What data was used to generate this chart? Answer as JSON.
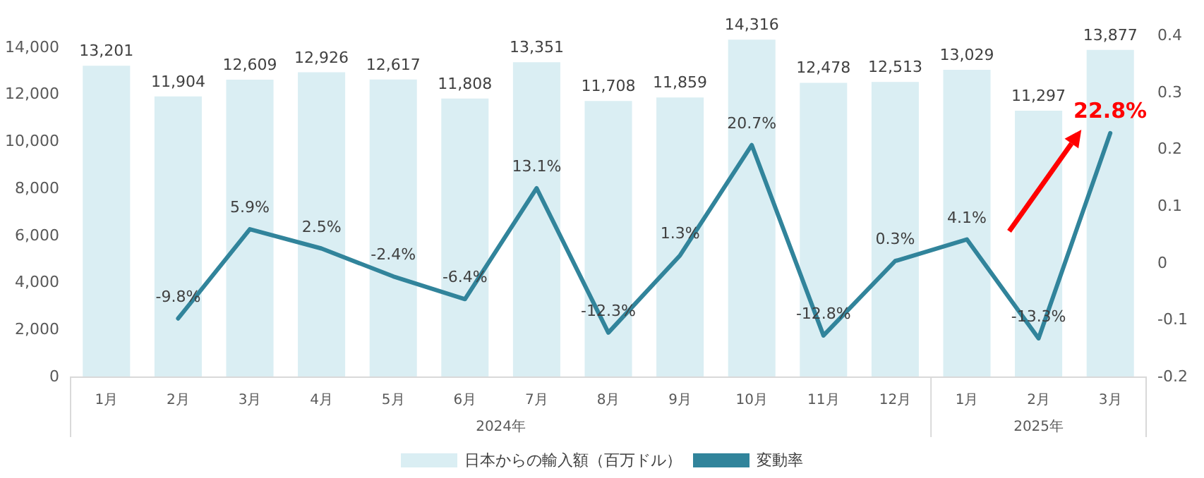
{
  "chart_data": {
    "type": "bar",
    "categories": [
      "1月",
      "2月",
      "3月",
      "4月",
      "5月",
      "6月",
      "7月",
      "8月",
      "9月",
      "10月",
      "11月",
      "12月",
      "1月",
      "2月",
      "3月"
    ],
    "series": [
      {
        "name": "日本からの輸入額（百万ドル）",
        "color": "#daeef3",
        "values": [
          13201,
          11904,
          12609,
          12926,
          12617,
          11808,
          13351,
          11708,
          11859,
          14316,
          12478,
          12513,
          13029,
          11297,
          13877
        ],
        "value_labels": [
          "13,201",
          "11,904",
          "12,609",
          "12,926",
          "12,617",
          "11,808",
          "13,351",
          "11,708",
          "11,859",
          "14,316",
          "12,478",
          "12,513",
          "13,029",
          "11,297",
          "13,877"
        ]
      },
      {
        "name": "変動率",
        "type": "line",
        "axis": "y2",
        "color": "#31849b",
        "values": [
          null,
          -0.098,
          0.059,
          0.025,
          -0.024,
          -0.064,
          0.131,
          -0.123,
          0.013,
          0.207,
          -0.128,
          0.003,
          0.041,
          -0.133,
          0.228
        ],
        "value_labels": [
          null,
          "-9.8%",
          "5.9%",
          "2.5%",
          "-2.4%",
          "-6.4%",
          "13.1%",
          "-12.3%",
          "1.3%",
          "20.7%",
          "-12.8%",
          "0.3%",
          "4.1%",
          "-13.3%",
          "22.8%"
        ]
      }
    ],
    "ylim": [
      0,
      14500
    ],
    "yticks": [
      0,
      {
        "value": 2000,
        "label": "2,000"
      },
      {
        "value": 4000,
        "label": "4,000"
      },
      {
        "value": 6000,
        "label": "6,000"
      },
      {
        "value": 8000,
        "label": "8,000"
      },
      {
        "value": 10000,
        "label": "10,000"
      },
      {
        "value": 12000,
        "label": "12,000"
      },
      {
        "value": 14000,
        "label": "14,000"
      }
    ],
    "y2lim": [
      -0.2,
      0.4
    ],
    "y2ticks": [
      -0.2,
      -0.1,
      0,
      0.1,
      0.2,
      0.3,
      0.4
    ],
    "annotations": [
      "2024年",
      "2025年"
    ],
    "legend": "bottom",
    "marker": "none",
    "line_style": "solid"
  }
}
